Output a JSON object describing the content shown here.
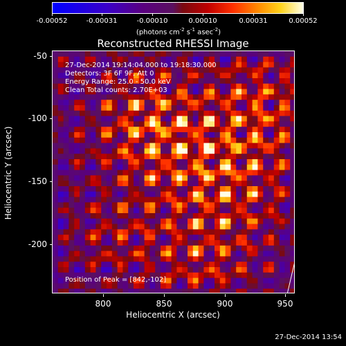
{
  "colorbar": {
    "ticks": [
      "-0.00052",
      "-0.00031",
      "-0.00010",
      "0.00010",
      "0.00031",
      "0.00052"
    ],
    "units_main": "(photons cm",
    "units_e1": "-2",
    "units_mid": " s",
    "units_e2": "-1",
    "units_mid2": " asec",
    "units_e3": "-2",
    "units_end": ")"
  },
  "title": "Reconstructed RHESSI Image",
  "annotations": {
    "time_range": "27-Dec-2014 19:14:04.000 to 19:18:30.000",
    "detectors": "Detectors: 3F 6F 9F, Att 0",
    "energy": "Energy Range: 25.0 - 50.0 keV",
    "clean": "Clean    Total counts: 2.70E+03",
    "peak": "Position of Peak = [842,-102]"
  },
  "x_axis": {
    "title": "Heliocentric X (arcsec)",
    "ticks": [
      "800",
      "850",
      "900",
      "950"
    ],
    "range": [
      760,
      950
    ]
  },
  "y_axis": {
    "title": "Heliocentric Y (arcsec)",
    "ticks": [
      "-50",
      "-100",
      "-150",
      "-200"
    ],
    "range": [
      -240,
      -45
    ]
  },
  "timestamp": "27-Dec-2014 13:54",
  "colors": {
    "background": "#000000",
    "axes": "#ffffff"
  }
}
